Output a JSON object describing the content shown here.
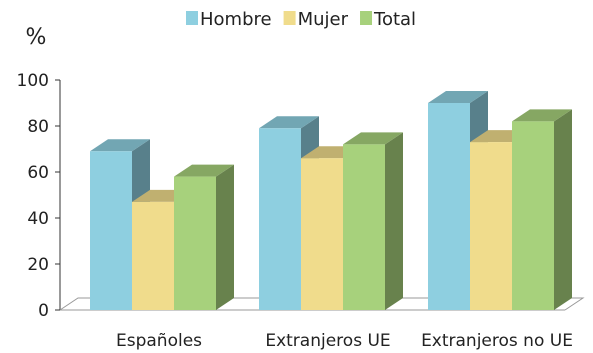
{
  "chart_data": {
    "type": "bar",
    "ylabel": "%",
    "ylim": [
      0,
      100
    ],
    "yticks": [
      0,
      20,
      40,
      60,
      80,
      100
    ],
    "grid": false,
    "legend_position": "top",
    "categories": [
      "Españoles",
      "Extranjeros UE",
      "Extranjeros no UE"
    ],
    "series": [
      {
        "name": "Hombre",
        "values": [
          69,
          79,
          90
        ],
        "color": "#8ecfe0"
      },
      {
        "name": "Mujer",
        "values": [
          47,
          66,
          73
        ],
        "color": "#f0dc8c"
      },
      {
        "name": "Total",
        "values": [
          58,
          72,
          82
        ],
        "color": "#a7d17c"
      }
    ]
  }
}
